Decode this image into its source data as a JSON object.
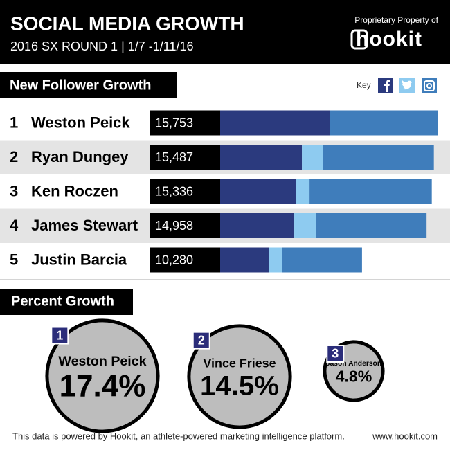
{
  "header": {
    "title": "SOCIAL MEDIA GROWTH",
    "subtitle": "2016 SX ROUND 1 | 1/7 -1/11/16",
    "ownership_note": "Proprietary Property of",
    "brand": "hookit"
  },
  "follower_growth": {
    "title": "New Follower Growth",
    "key_label": "Key",
    "rows": [
      {
        "rank": 1,
        "name": "Weston Peick",
        "total": "15,753",
        "segments": [
          7930,
          0,
          7823
        ]
      },
      {
        "rank": 2,
        "name": "Ryan Dungey",
        "total": "15,487",
        "segments": [
          5925,
          1506,
          8056
        ]
      },
      {
        "rank": 3,
        "name": "Ken Roczen",
        "total": "15,336",
        "segments": [
          5472,
          1004,
          8860
        ]
      },
      {
        "rank": 4,
        "name": "James Stewart",
        "total": "14,958",
        "segments": [
          5372,
          1556,
          8030
        ]
      },
      {
        "rank": 5,
        "name": "Justin Barcia",
        "total": "10,280",
        "segments": [
          3514,
          954,
          5812
        ]
      }
    ]
  },
  "percent_growth": {
    "title": "Percent Growth",
    "items": [
      {
        "rank": 1,
        "name": "Weston Peick",
        "value": 17.4,
        "label": "17.4%"
      },
      {
        "rank": 2,
        "name": "Vince Friese",
        "value": 14.5,
        "label": "14.5%"
      },
      {
        "rank": 3,
        "name": "Jason Anderson",
        "value": 4.8,
        "label": "4.8%"
      }
    ]
  },
  "footer": {
    "note": "This data is powered by Hookit, an athlete-powered marketing intelligence platform.",
    "url": "www.hookit.com"
  }
}
